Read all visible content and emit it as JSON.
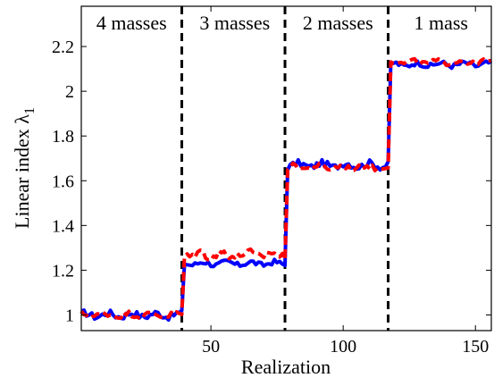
{
  "chart_data": {
    "type": "line",
    "title": "",
    "xlabel": "Realization",
    "ylabel_main": "Linear index ",
    "ylabel_symbol": "λ",
    "ylabel_subscript": "1",
    "xlim": [
      1,
      156
    ],
    "ylim": [
      0.93,
      2.38
    ],
    "xticks": [
      50,
      100,
      150
    ],
    "yticks": [
      1,
      1.2,
      1.4,
      1.6,
      1.8,
      2,
      2.2
    ],
    "ytick_labels": [
      "1",
      "1.2",
      "1.4",
      "1.6",
      "1.8",
      "2",
      "2.2"
    ],
    "grid": false,
    "legend": "none",
    "separators": [
      39,
      78,
      117
    ],
    "regions": [
      {
        "label": "4 masses",
        "x_center": 20
      },
      {
        "label": "3 masses",
        "x_center": 59
      },
      {
        "label": "2 masses",
        "x_center": 98
      },
      {
        "label": "1 mass",
        "x_center": 137
      }
    ],
    "series": [
      {
        "color": "#0000ff",
        "style": "solid",
        "segments": [
          {
            "x_start": 1,
            "x_end": 39,
            "level": 1.0,
            "jitter": 0.015
          },
          {
            "x_start": 40,
            "x_end": 78,
            "level": 1.23,
            "jitter": 0.012
          },
          {
            "x_start": 79,
            "x_end": 117,
            "level": 1.67,
            "jitter": 0.015
          },
          {
            "x_start": 118,
            "x_end": 156,
            "level": 2.12,
            "jitter": 0.012
          }
        ]
      },
      {
        "color": "#ff0000",
        "style": "dashed",
        "segments": [
          {
            "x_start": 1,
            "x_end": 39,
            "level": 1.0,
            "jitter": 0.012
          },
          {
            "x_start": 40,
            "x_end": 78,
            "level": 1.27,
            "jitter": 0.02
          },
          {
            "x_start": 79,
            "x_end": 117,
            "level": 1.66,
            "jitter": 0.012
          },
          {
            "x_start": 118,
            "x_end": 156,
            "level": 2.13,
            "jitter": 0.01
          }
        ]
      }
    ]
  }
}
